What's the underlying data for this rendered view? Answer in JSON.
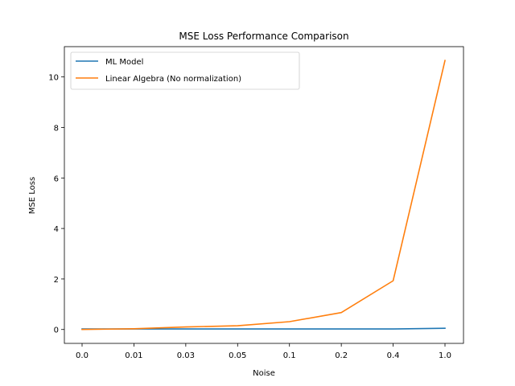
{
  "chart_data": {
    "type": "line",
    "title": "MSE Loss Performance Comparison",
    "xlabel": "Noise",
    "ylabel": "MSE Loss",
    "categories": [
      "0.0",
      "0.01",
      "0.03",
      "0.05",
      "0.1",
      "0.2",
      "0.4",
      "1.0"
    ],
    "ylim": [
      -0.55,
      11.2
    ],
    "yticks": [
      0,
      2,
      4,
      6,
      8,
      10
    ],
    "grid": false,
    "legend_position": "upper-left",
    "series": [
      {
        "name": "ML Model",
        "color": "#1f77b4",
        "values": [
          0.02,
          0.02,
          0.02,
          0.02,
          0.02,
          0.02,
          0.02,
          0.05
        ]
      },
      {
        "name": "Linear Algebra (No normalization)",
        "color": "#ff7f0e",
        "values": [
          0.0,
          0.03,
          0.1,
          0.15,
          0.31,
          0.67,
          1.93,
          10.65
        ]
      }
    ]
  }
}
